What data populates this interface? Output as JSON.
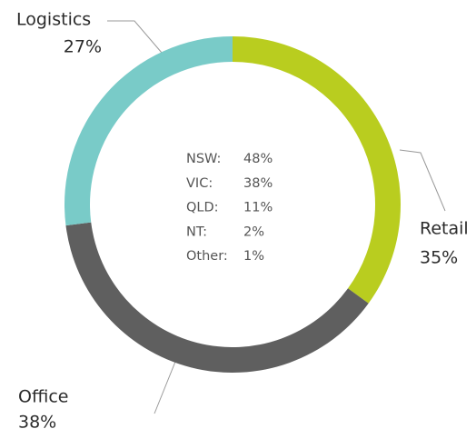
{
  "chart_data": {
    "type": "donut",
    "categories": [
      "Retail",
      "Office",
      "Logistics"
    ],
    "values": [
      35,
      38,
      27
    ],
    "value_labels": [
      "35%",
      "38%",
      "27%"
    ],
    "colors": [
      "#b9cd1f",
      "#5f5f5f",
      "#79cbc8"
    ],
    "center_list": [
      {
        "name": "NSW:",
        "share": "48%"
      },
      {
        "name": "VIC:",
        "share": "38%"
      },
      {
        "name": "QLD:",
        "share": "11%"
      },
      {
        "name": "NT:",
        "share": "2%"
      },
      {
        "name": "Other:",
        "share": "1%"
      }
    ]
  }
}
